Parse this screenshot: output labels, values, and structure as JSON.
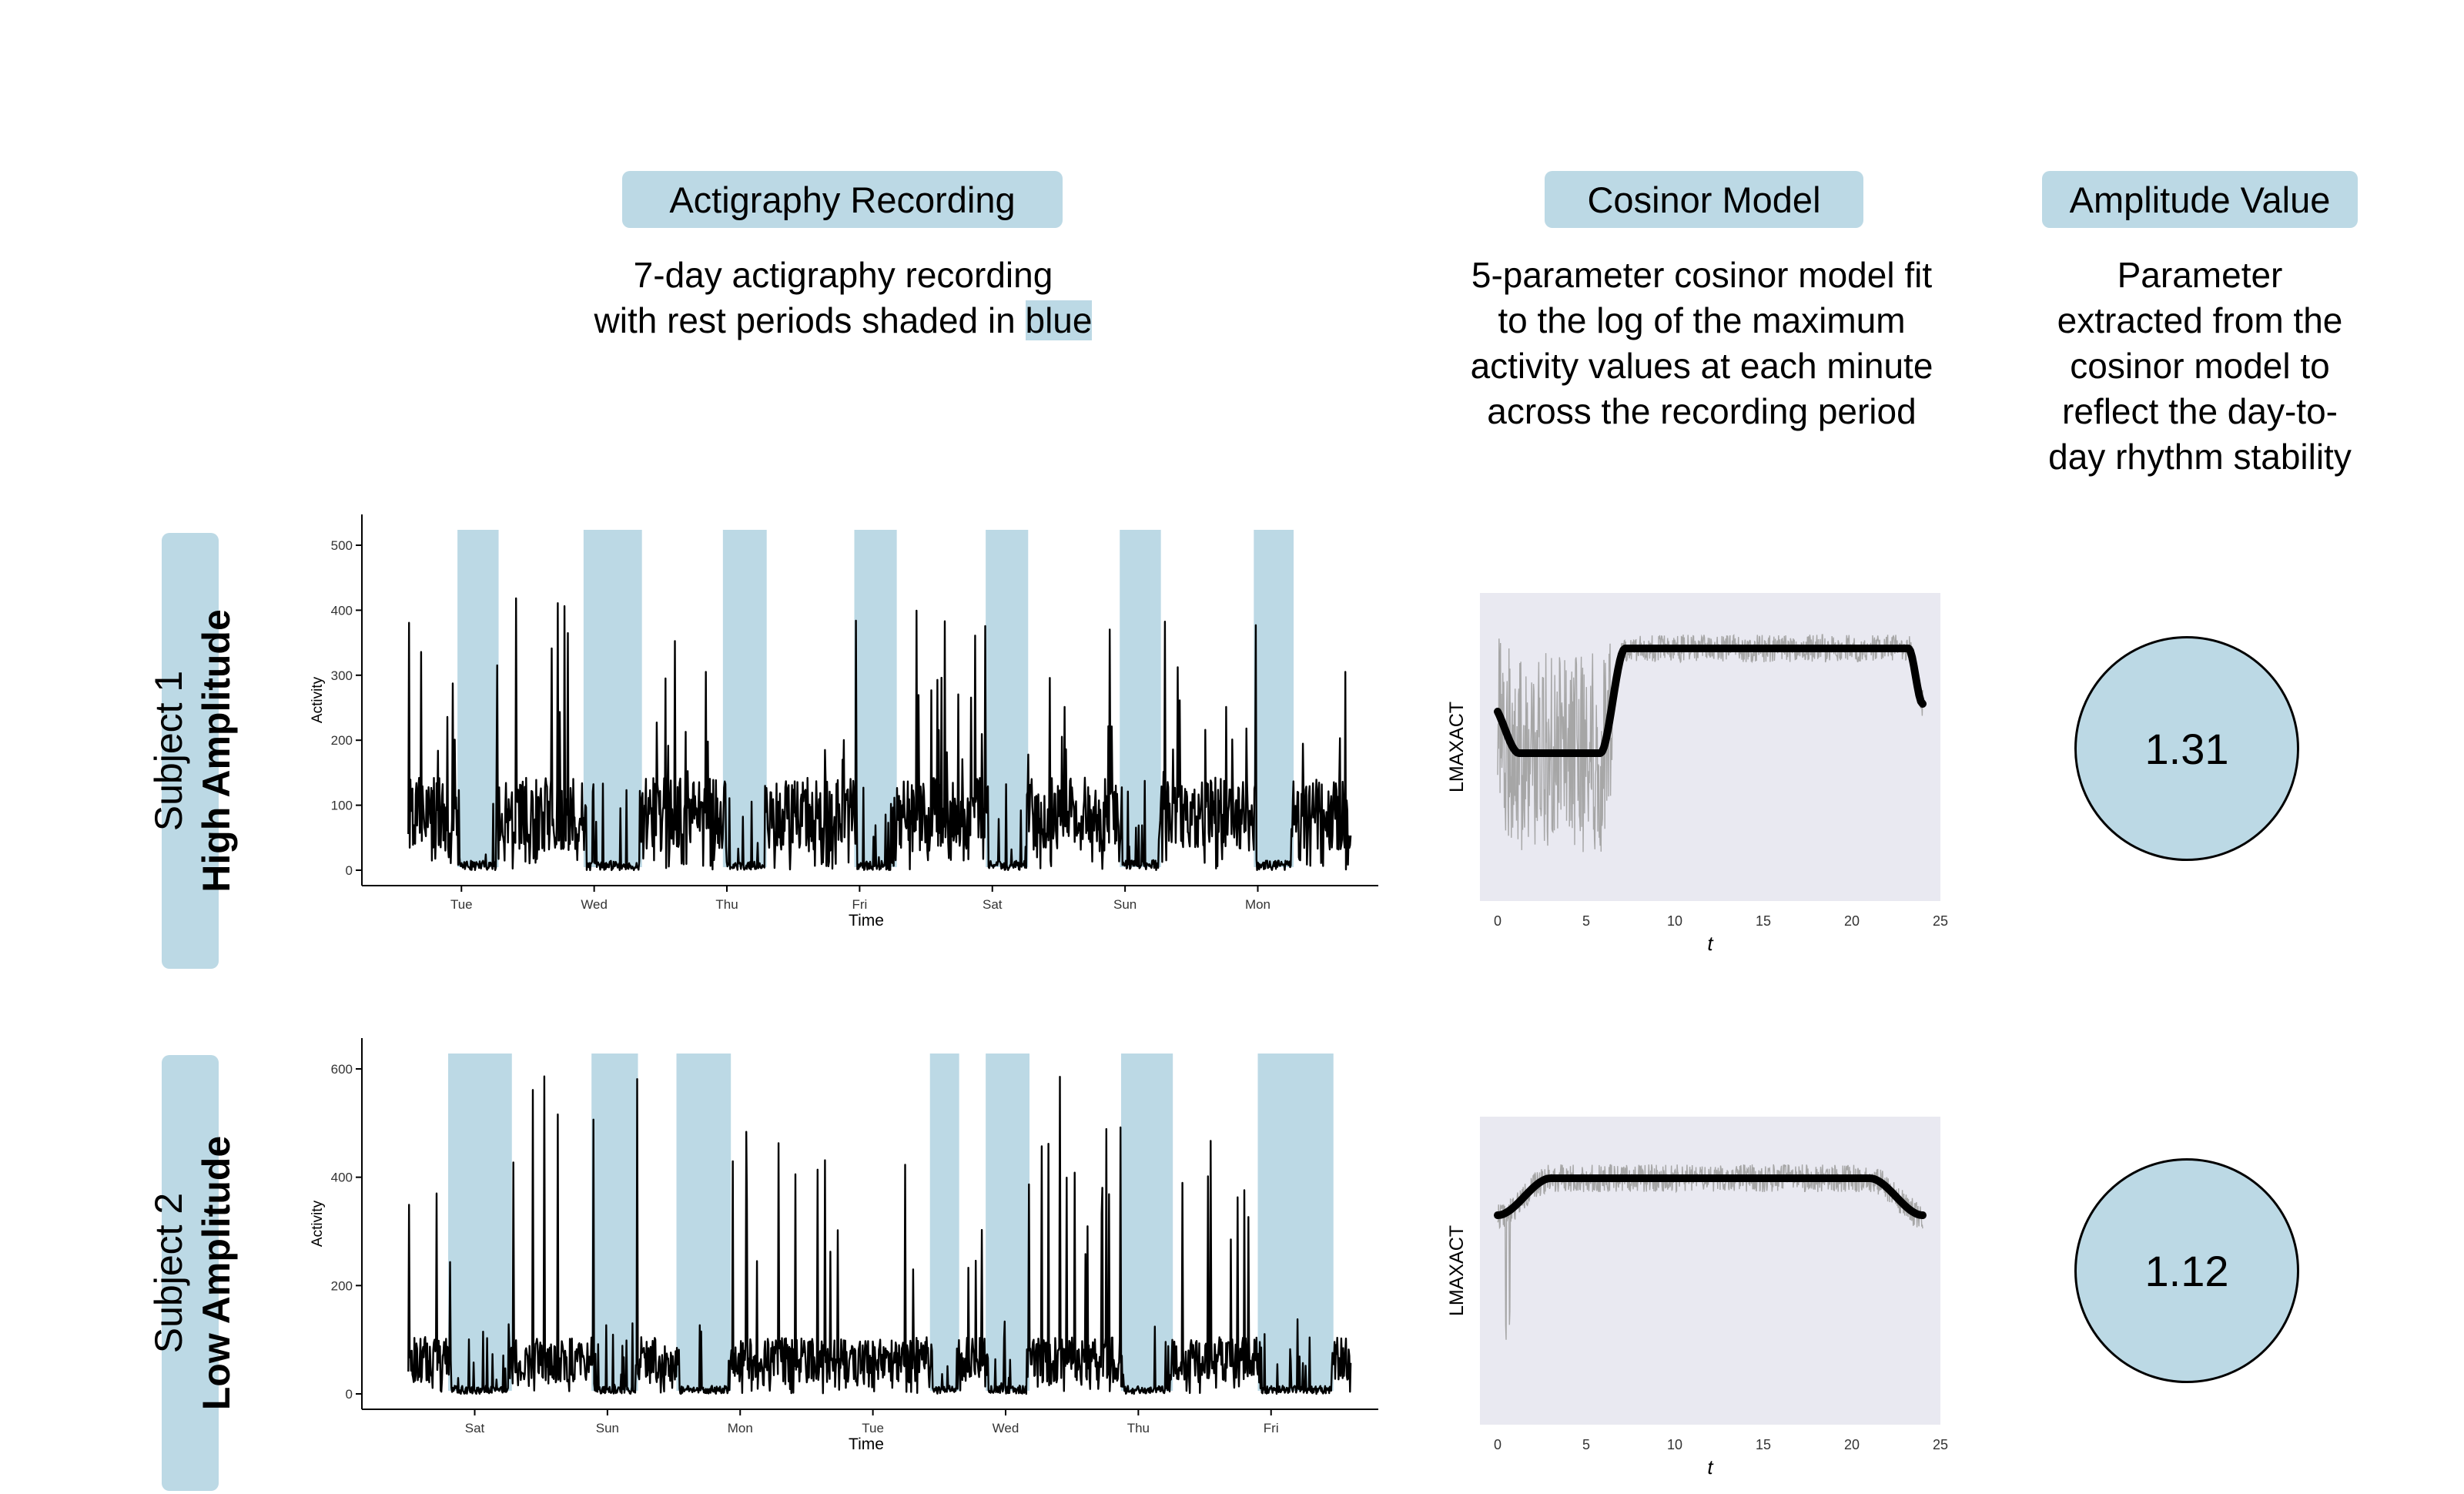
{
  "columns": {
    "actigraphy": {
      "title": "Actigraphy Recording",
      "desc_line1": "7-day actigraphy recording",
      "desc_line2_prefix": "with rest periods shaded in ",
      "desc_highlight": "blue"
    },
    "cosinor": {
      "title": "Cosinor Model",
      "desc_lines": [
        "5-parameter cosinor model fit",
        "to the log of the maximum",
        "activity values at each minute",
        "across the recording period"
      ]
    },
    "amplitude": {
      "title": "Amplitude Value",
      "desc_lines": [
        "Parameter",
        "extracted from the",
        "cosinor model to",
        "reflect the day-to-",
        "day rhythm stability"
      ]
    }
  },
  "subjects": [
    {
      "line1": "Subject 1",
      "line2": "High Amplitude",
      "amplitude": "1.31"
    },
    {
      "line1": "Subject 2",
      "line2": "Low Amplitude",
      "amplitude": "1.12"
    }
  ],
  "colors": {
    "shade": "#bcd9e5",
    "panel_bg": "#e9e9f1",
    "raw_line": "#a6a6a6",
    "fit_line": "#000000"
  },
  "chart_data": [
    {
      "type": "line",
      "subject": "Subject 1",
      "ylabel": "Activity",
      "xlabel": "Time",
      "ylim": [
        0,
        500
      ],
      "yticks": [
        0,
        100,
        200,
        300,
        400,
        500
      ],
      "xlim": [
        0,
        7.6
      ],
      "xticks": [
        {
          "label": "Tue",
          "x": 0.75
        },
        {
          "label": "Wed",
          "x": 1.75
        },
        {
          "label": "Thu",
          "x": 2.75
        },
        {
          "label": "Fri",
          "x": 3.75
        },
        {
          "label": "Sat",
          "x": 4.75
        },
        {
          "label": "Sun",
          "x": 5.75
        },
        {
          "label": "Mon",
          "x": 6.75
        }
      ],
      "rest_periods": [
        [
          0.72,
          1.03
        ],
        [
          1.67,
          2.11
        ],
        [
          2.72,
          3.05
        ],
        [
          3.71,
          4.03
        ],
        [
          4.7,
          5.02
        ],
        [
          5.71,
          6.02
        ],
        [
          6.72,
          7.02
        ]
      ],
      "series": [
        {
          "seed": 7,
          "base": 95,
          "peak": 420,
          "range": [
            0.35,
            7.45
          ]
        }
      ]
    },
    {
      "type": "line",
      "subject": "Subject 2",
      "ylabel": "Activity",
      "xlabel": "Time",
      "ylim": [
        0,
        600
      ],
      "yticks": [
        0,
        200,
        400,
        600
      ],
      "xlim": [
        0,
        7.6
      ],
      "xticks": [
        {
          "label": "Sat",
          "x": 0.85
        },
        {
          "label": "Sun",
          "x": 1.85
        },
        {
          "label": "Mon",
          "x": 2.85
        },
        {
          "label": "Tue",
          "x": 3.85
        },
        {
          "label": "Wed",
          "x": 4.85
        },
        {
          "label": "Thu",
          "x": 5.85
        },
        {
          "label": "Fri",
          "x": 6.85
        }
      ],
      "rest_periods": [
        [
          0.65,
          1.13
        ],
        [
          1.73,
          2.08
        ],
        [
          2.37,
          2.78
        ],
        [
          4.28,
          4.5
        ],
        [
          4.7,
          5.03
        ],
        [
          5.72,
          6.11
        ],
        [
          6.75,
          7.32
        ]
      ],
      "series": [
        {
          "seed": 13,
          "base": 70,
          "peak": 610,
          "range": [
            0.35,
            7.45
          ]
        }
      ]
    },
    {
      "type": "line",
      "subject": "Subject 1",
      "ylabel": "LMAXACT",
      "xlabel": "t",
      "xlim": [
        -1,
        25
      ],
      "xticks": [
        0,
        5,
        10,
        15,
        20,
        25
      ],
      "ylim": [
        0,
        10
      ],
      "fit": {
        "min": 4.8,
        "max": 8.2,
        "start": 6.4,
        "end": 6.4,
        "rise": [
          5.8,
          7.2
        ],
        "fall": [
          23.2,
          24.0
        ]
      }
    },
    {
      "type": "line",
      "subject": "Subject 2",
      "ylabel": "LMAXACT",
      "xlabel": "t",
      "xlim": [
        -1,
        25
      ],
      "xticks": [
        0,
        5,
        10,
        15,
        20,
        25
      ],
      "ylim": [
        0,
        10
      ],
      "fit": {
        "min": 6.8,
        "max": 8.0,
        "start": 6.8,
        "end": 6.8,
        "rise": [
          0.0,
          3.0
        ],
        "fall": [
          21.0,
          24.0
        ]
      }
    }
  ]
}
